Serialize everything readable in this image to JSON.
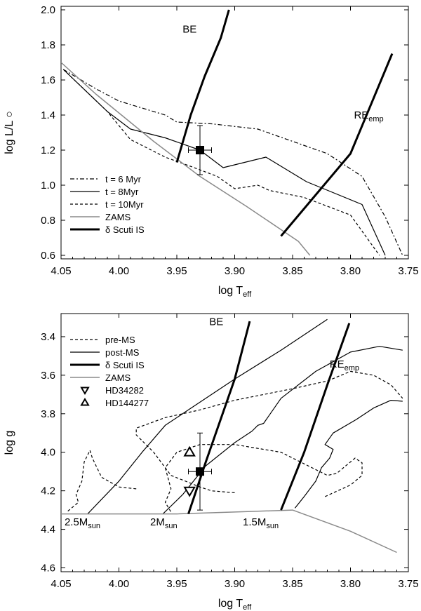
{
  "chart_data": [
    {
      "type": "line",
      "title": "",
      "xlabel": "log T",
      "xlabel_sub": "eff",
      "ylabel": "log L/L ○",
      "xlim": [
        4.05,
        3.75
      ],
      "ylim": [
        0.58,
        2.02
      ],
      "x_ticks": [
        4.05,
        4.0,
        3.95,
        3.9,
        3.85,
        3.8,
        3.75
      ],
      "x_tick_labels": [
        "4.05",
        "4.00",
        "3.95",
        "3.90",
        "3.85",
        "3.80",
        "3.75"
      ],
      "y_ticks": [
        0.6,
        0.8,
        1.0,
        1.2,
        1.4,
        1.6,
        1.8,
        2.0
      ],
      "y_tick_labels": [
        "0.6",
        "0.8",
        "1.0",
        "1.2",
        "1.4",
        "1.6",
        "1.8",
        "2.0"
      ],
      "legend": [
        {
          "label": "t = 6 Myr",
          "style": "dashdot"
        },
        {
          "label": "t = 8Myr",
          "style": "solid"
        },
        {
          "label": "t = 10Myr",
          "style": "dashed"
        },
        {
          "label": "ZAMS",
          "style": "gray"
        },
        {
          "label": "δ Scuti IS",
          "style": "thick"
        }
      ],
      "annotations": [
        {
          "text": "BE",
          "x": 3.945,
          "y": 1.87
        },
        {
          "text": "RE",
          "sub": "emp",
          "x": 3.797,
          "y": 1.38
        }
      ],
      "series": [
        {
          "name": "t = 6 Myr",
          "style": "dashdot",
          "points": [
            [
              4.048,
              1.66
            ],
            [
              4.02,
              1.55
            ],
            [
              4.0,
              1.48
            ],
            [
              3.96,
              1.4
            ],
            [
              3.95,
              1.36
            ],
            [
              3.92,
              1.35
            ],
            [
              3.88,
              1.32
            ],
            [
              3.82,
              1.18
            ],
            [
              3.79,
              1.05
            ],
            [
              3.77,
              0.82
            ],
            [
              3.755,
              0.6
            ]
          ]
        },
        {
          "name": "t = 8Myr",
          "style": "solid",
          "points": [
            [
              4.048,
              1.66
            ],
            [
              4.01,
              1.42
            ],
            [
              3.99,
              1.32
            ],
            [
              3.96,
              1.27
            ],
            [
              3.93,
              1.2
            ],
            [
              3.91,
              1.1
            ],
            [
              3.873,
              1.16
            ],
            [
              3.838,
              1.02
            ],
            [
              3.79,
              0.89
            ],
            [
              3.77,
              0.6
            ]
          ]
        },
        {
          "name": "t = 10Myr",
          "style": "dashed",
          "points": [
            [
              4.048,
              1.66
            ],
            [
              4.01,
              1.42
            ],
            [
              3.99,
              1.26
            ],
            [
              3.96,
              1.16
            ],
            [
              3.935,
              1.1
            ],
            [
              3.915,
              1.05
            ],
            [
              3.9,
              0.98
            ],
            [
              3.88,
              1.0
            ],
            [
              3.87,
              0.97
            ],
            [
              3.84,
              0.93
            ],
            [
              3.8,
              0.83
            ],
            [
              3.775,
              0.6
            ]
          ]
        },
        {
          "name": "ZAMS",
          "style": "gray",
          "points": [
            [
              4.05,
              1.7
            ],
            [
              4.02,
              1.52
            ],
            [
              3.97,
              1.25
            ],
            [
              3.93,
              1.05
            ],
            [
              3.89,
              0.88
            ],
            [
              3.845,
              0.68
            ],
            [
              3.835,
              0.6
            ]
          ]
        },
        {
          "name": "BE",
          "style": "thick",
          "points": [
            [
              3.95,
              1.13
            ],
            [
              3.938,
              1.4
            ],
            [
              3.926,
              1.62
            ],
            [
              3.912,
              1.84
            ],
            [
              3.905,
              2.0
            ]
          ]
        },
        {
          "name": "RE_emp",
          "style": "thick",
          "points": [
            [
              3.86,
              0.71
            ],
            [
              3.8,
              1.18
            ],
            [
              3.764,
              1.75
            ]
          ]
        }
      ],
      "target": {
        "x": 3.93,
        "y": 1.2,
        "x_err": 0.01,
        "y_err_plus": 0.14,
        "y_err_minus": 0.14,
        "marker": "filled-square"
      }
    },
    {
      "type": "line",
      "title": "",
      "xlabel": "log T",
      "xlabel_sub": "eff",
      "ylabel": "log g",
      "xlim": [
        4.05,
        3.75
      ],
      "ylim": [
        4.62,
        3.28
      ],
      "x_ticks": [
        4.05,
        4.0,
        3.95,
        3.9,
        3.85,
        3.8,
        3.75
      ],
      "x_tick_labels": [
        "4.05",
        "4.00",
        "3.95",
        "3.90",
        "3.85",
        "3.80",
        "3.75"
      ],
      "y_ticks": [
        3.4,
        3.6,
        3.8,
        4.0,
        4.2,
        4.4,
        4.6
      ],
      "y_tick_labels": [
        "3.4",
        "3.6",
        "3.8",
        "4.0",
        "4.2",
        "4.4",
        "4.6"
      ],
      "legend": [
        {
          "label": "pre-MS",
          "style": "dashed"
        },
        {
          "label": "post-MS",
          "style": "solid"
        },
        {
          "label": "δ Scuti IS",
          "style": "thick"
        },
        {
          "label": "ZAMS",
          "style": "gray"
        },
        {
          "label": "HD34282",
          "style": "triangle-down"
        },
        {
          "label": "HD144277",
          "style": "triangle-up"
        }
      ],
      "annotations": [
        {
          "text": "BE",
          "x": 3.922,
          "y": 3.34
        },
        {
          "text": "RE",
          "sub": "emp",
          "x": 3.818,
          "y": 3.56
        },
        {
          "text": "2.5M",
          "sub": "sun",
          "x": 4.047,
          "y": 4.38
        },
        {
          "text": "2M",
          "sub": "sun",
          "x": 3.973,
          "y": 4.38
        },
        {
          "text": "1.5M",
          "sub": "sun",
          "x": 3.893,
          "y": 4.38
        }
      ],
      "series": [
        {
          "name": "post-MS 2.5",
          "style": "solid",
          "points": [
            [
              4.027,
              4.32
            ],
            [
              4.0,
              4.15
            ],
            [
              3.98,
              4.0
            ],
            [
              3.96,
              3.86
            ],
            [
              3.94,
              3.78
            ],
            [
              3.9,
              3.62
            ],
            [
              3.86,
              3.47
            ],
            [
              3.82,
              3.31
            ]
          ]
        },
        {
          "name": "post-MS 2",
          "style": "solid",
          "points": [
            [
              3.962,
              4.32
            ],
            [
              3.945,
              4.22
            ],
            [
              3.925,
              4.07
            ],
            [
              3.9,
              3.95
            ],
            [
              3.885,
              3.89
            ],
            [
              3.88,
              3.86
            ],
            [
              3.875,
              3.85
            ],
            [
              3.86,
              3.72
            ],
            [
              3.83,
              3.58
            ],
            [
              3.8,
              3.48
            ],
            [
              3.775,
              3.45
            ],
            [
              3.755,
              3.47
            ]
          ]
        },
        {
          "name": "post-MS 1.5",
          "style": "solid",
          "points": [
            [
              3.848,
              4.29
            ],
            [
              3.84,
              4.23
            ],
            [
              3.83,
              4.15
            ],
            [
              3.825,
              4.08
            ],
            [
              3.818,
              4.03
            ],
            [
              3.815,
              3.985
            ],
            [
              3.822,
              3.96
            ],
            [
              3.815,
              3.9
            ],
            [
              3.795,
              3.83
            ],
            [
              3.78,
              3.77
            ],
            [
              3.765,
              3.73
            ],
            [
              3.755,
              3.735
            ]
          ]
        },
        {
          "name": "pre-MS 2.5",
          "style": "dashed",
          "points": [
            [
              3.985,
              4.19
            ],
            [
              4.0,
              4.18
            ],
            [
              4.015,
              4.13
            ],
            [
              4.023,
              4.03
            ],
            [
              4.025,
              3.99
            ],
            [
              4.03,
              4.05
            ],
            [
              4.032,
              4.15
            ],
            [
              4.037,
              4.22
            ],
            [
              4.035,
              4.26
            ],
            [
              4.045,
              4.31
            ]
          ]
        },
        {
          "name": "pre-MS 2",
          "style": "dashed",
          "points": [
            [
              3.9,
              4.21
            ],
            [
              3.92,
              4.2
            ],
            [
              3.93,
              4.18
            ],
            [
              3.955,
              4.12
            ],
            [
              3.97,
              4.0
            ],
            [
              3.985,
              3.91
            ],
            [
              3.985,
              3.875
            ],
            [
              3.96,
              3.82
            ],
            [
              3.93,
              3.78
            ],
            [
              3.9,
              3.73
            ],
            [
              3.85,
              3.67
            ],
            [
              3.82,
              3.63
            ],
            [
              3.8,
              3.58
            ],
            [
              3.78,
              3.6
            ],
            [
              3.765,
              3.65
            ],
            [
              3.755,
              3.72
            ]
          ]
        },
        {
          "name": "pre-MS 1.5",
          "style": "dashed",
          "points": [
            [
              3.822,
              4.23
            ],
            [
              3.8,
              4.17
            ],
            [
              3.79,
              4.12
            ],
            [
              3.79,
              4.055
            ],
            [
              3.796,
              4.03
            ],
            [
              3.812,
              4.11
            ],
            [
              3.82,
              4.12
            ],
            [
              3.84,
              4.06
            ],
            [
              3.86,
              4.0
            ],
            [
              3.9,
              3.96
            ],
            [
              3.93,
              3.96
            ],
            [
              3.95,
              4.0
            ],
            [
              3.96,
              4.08
            ],
            [
              3.955,
              4.19
            ],
            [
              3.96,
              4.26
            ],
            [
              3.955,
              4.31
            ]
          ]
        },
        {
          "name": "ZAMS",
          "style": "gray",
          "points": [
            [
              4.05,
              4.32
            ],
            [
              4.0,
              4.32
            ],
            [
              3.95,
              4.32
            ],
            [
              3.9,
              4.31
            ],
            [
              3.85,
              4.3
            ],
            [
              3.8,
              4.41
            ],
            [
              3.76,
              4.52
            ]
          ]
        },
        {
          "name": "BE",
          "style": "thick",
          "points": [
            [
              3.94,
              4.32
            ],
            [
              3.925,
              4.05
            ],
            [
              3.9,
              3.62
            ],
            [
              3.887,
              3.32
            ]
          ]
        },
        {
          "name": "RE_emp",
          "style": "thick",
          "points": [
            [
              3.86,
              4.3
            ],
            [
              3.84,
              4.0
            ],
            [
              3.82,
              3.65
            ],
            [
              3.801,
              3.33
            ]
          ]
        }
      ],
      "stars": [
        {
          "name": "HD34282",
          "x": 3.939,
          "y": 4.2,
          "marker": "triangle-down"
        },
        {
          "name": "HD144277",
          "x": 3.939,
          "y": 4.0,
          "marker": "triangle-up"
        }
      ],
      "target": {
        "x": 3.93,
        "y": 4.1,
        "x_err": 0.01,
        "y_err_plus": 0.2,
        "y_err_minus": 0.2,
        "marker": "filled-square"
      }
    }
  ]
}
